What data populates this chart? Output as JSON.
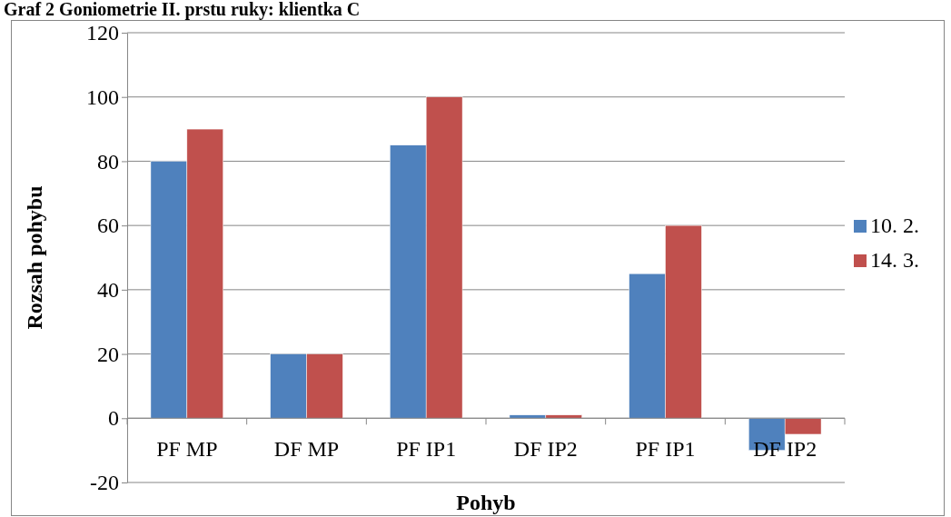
{
  "chart_data": {
    "type": "bar",
    "title": "Graf 2 Goniometrie II. prstu ruky: klientka C",
    "xlabel": "Pohyb",
    "ylabel": "Rozsah pohybu",
    "categories": [
      "PF MP",
      "DF MP",
      "PF IP1",
      "DF IP2",
      "PF IP1",
      "DF IP2"
    ],
    "series": [
      {
        "name": "10. 2.",
        "color": "#4f81bd",
        "values": [
          80,
          20,
          85,
          1,
          45,
          -10
        ]
      },
      {
        "name": "14. 3.",
        "color": "#c0504d",
        "values": [
          90,
          20,
          100,
          1,
          60,
          -5
        ]
      }
    ],
    "ylim": [
      -20,
      120
    ],
    "yticks": [
      -20,
      0,
      20,
      40,
      60,
      80,
      100,
      120
    ],
    "grid": "y",
    "legend": "right"
  }
}
